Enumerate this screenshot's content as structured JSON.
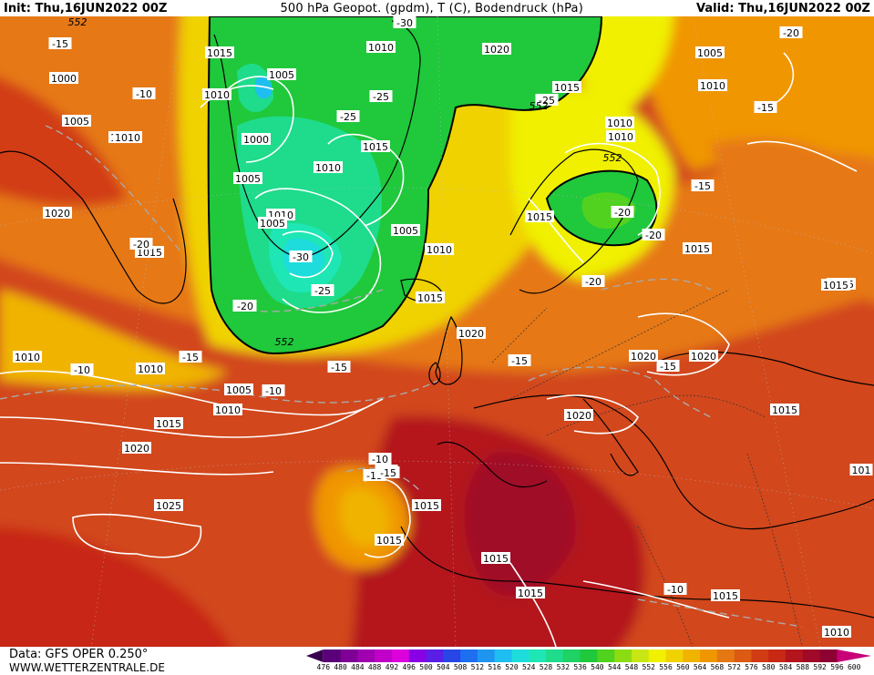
{
  "header": {
    "init": "Init: Thu,16JUN2022 00Z",
    "title": "500 hPa Geopot. (gpdm), T (C), Bodendruck (hPa)",
    "valid": "Valid: Thu,16JUN2022 00Z"
  },
  "footer": {
    "source": "Data: GFS OPER 0.250°",
    "website": "WWW.WETTERZENTRALE.DE"
  },
  "legend": {
    "levels": [
      "476",
      "480",
      "484",
      "488",
      "492",
      "496",
      "500",
      "504",
      "508",
      "512",
      "516",
      "520",
      "524",
      "528",
      "532",
      "536",
      "540",
      "544",
      "548",
      "552",
      "556",
      "560",
      "564",
      "568",
      "572",
      "576",
      "580",
      "584",
      "588",
      "592",
      "596",
      "600"
    ],
    "colors": [
      "#3a0050",
      "#5a0078",
      "#7e0096",
      "#a000b0",
      "#c000c8",
      "#dc00dc",
      "#8a00e6",
      "#5a1ee6",
      "#2846e6",
      "#1e6ef0",
      "#1e96f0",
      "#1ebef0",
      "#1edcdc",
      "#1ee6b4",
      "#1edc8c",
      "#1ed264",
      "#20c83c",
      "#50d21e",
      "#8cdc14",
      "#c8e614",
      "#f0f000",
      "#f0d200",
      "#f0b400",
      "#f09600",
      "#e67814",
      "#dc5a14",
      "#d23c14",
      "#c82814",
      "#b4141e",
      "#a00a28",
      "#8c0032",
      "#c80078"
    ]
  },
  "map": {
    "isobar_labels": [
      {
        "text": "1015"
      },
      {
        "text": "1010"
      },
      {
        "text": "1000"
      },
      {
        "text": "1005"
      },
      {
        "text": "1010"
      },
      {
        "text": "1015"
      },
      {
        "text": "1010"
      },
      {
        "text": "1020"
      },
      {
        "text": "1015"
      },
      {
        "text": "1005"
      },
      {
        "text": "1010"
      },
      {
        "text": "1010"
      },
      {
        "text": "1005"
      },
      {
        "text": "1010"
      },
      {
        "text": "1000"
      },
      {
        "text": "1005"
      },
      {
        "text": "1010"
      },
      {
        "text": "1015"
      },
      {
        "text": "1020"
      },
      {
        "text": "1015"
      },
      {
        "text": "1020"
      },
      {
        "text": "1010"
      },
      {
        "text": "1005"
      },
      {
        "text": "1010"
      },
      {
        "text": "1015"
      },
      {
        "text": "1010"
      },
      {
        "text": "1015"
      },
      {
        "text": "1020"
      },
      {
        "text": "1025"
      },
      {
        "text": "1015"
      },
      {
        "text": "1015"
      },
      {
        "text": "1015"
      },
      {
        "text": "1015"
      },
      {
        "text": "1020"
      },
      {
        "text": "1020"
      },
      {
        "text": "1020"
      },
      {
        "text": "1015"
      },
      {
        "text": "1015"
      },
      {
        "text": "1005"
      },
      {
        "text": "1010"
      },
      {
        "text": "1010"
      },
      {
        "text": "1015"
      },
      {
        "text": "1015"
      },
      {
        "text": "101"
      },
      {
        "text": "1010"
      },
      {
        "text": "1015"
      },
      {
        "text": "1010"
      },
      {
        "text": "1010"
      },
      {
        "text": "1005"
      }
    ],
    "temp_labels": [
      {
        "text": "-15"
      },
      {
        "text": "-10"
      },
      {
        "text": "-30"
      },
      {
        "text": "-25"
      },
      {
        "text": "-25"
      },
      {
        "text": "-25"
      },
      {
        "text": "-30"
      },
      {
        "text": "-25"
      },
      {
        "text": "-20"
      },
      {
        "text": "-15"
      },
      {
        "text": "-10"
      },
      {
        "text": "-20"
      },
      {
        "text": "-20"
      },
      {
        "text": "-20"
      },
      {
        "text": "-15"
      },
      {
        "text": "-10"
      },
      {
        "text": "-15"
      },
      {
        "text": "-10"
      },
      {
        "text": "-20"
      },
      {
        "text": "-15"
      },
      {
        "text": "-15"
      },
      {
        "text": "-20"
      },
      {
        "text": "-20"
      },
      {
        "text": "-15"
      },
      {
        "text": "-15"
      },
      {
        "text": "-10"
      },
      {
        "text": "-15"
      },
      {
        "text": "-10"
      },
      {
        "text": "-10"
      },
      {
        "text": "-15"
      }
    ],
    "geopot_labels": [
      {
        "text": "552"
      },
      {
        "text": "552"
      },
      {
        "text": "552"
      },
      {
        "text": "552"
      }
    ]
  }
}
